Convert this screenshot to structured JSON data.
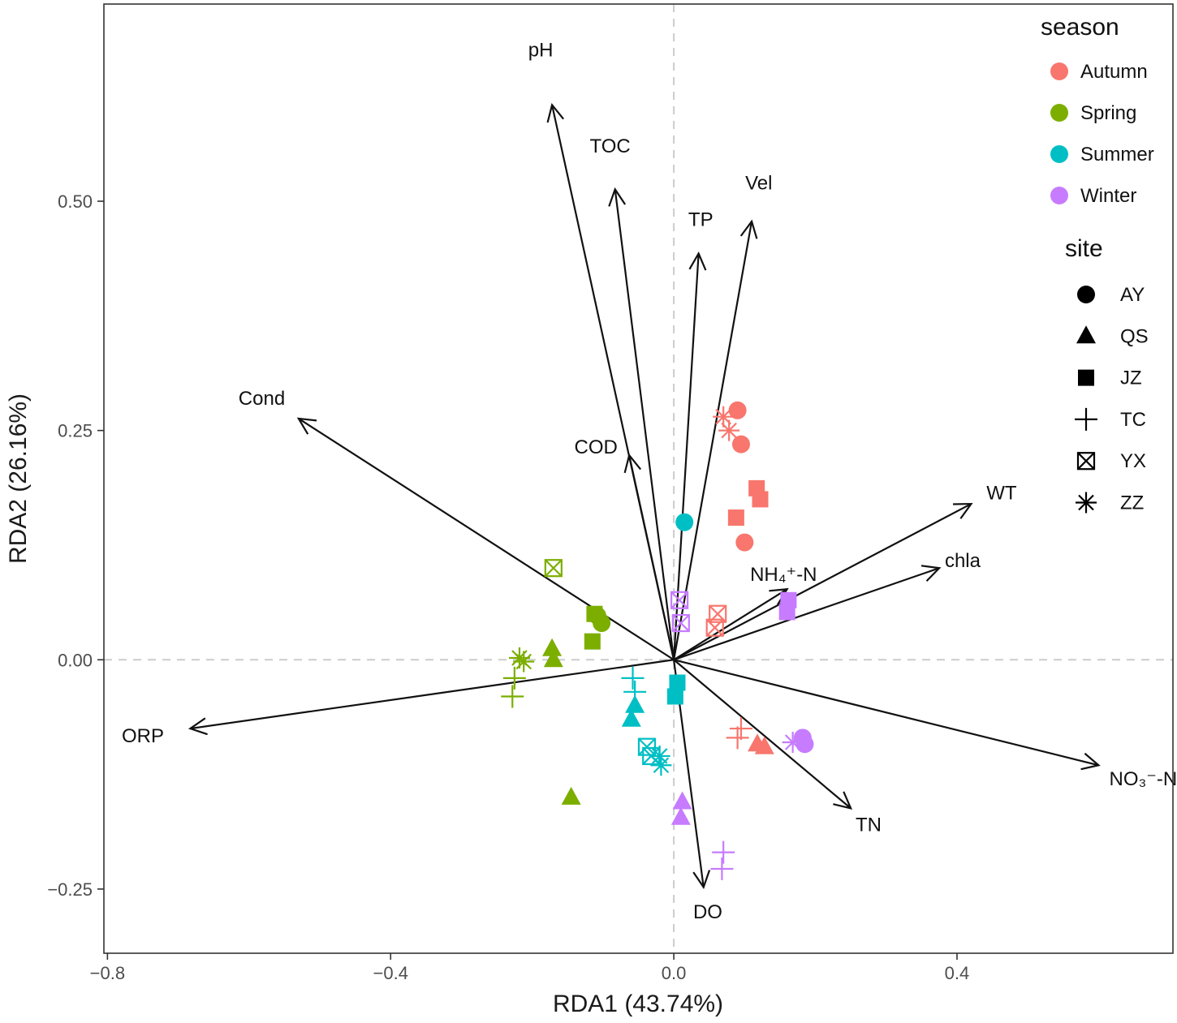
{
  "chart_data": {
    "type": "scatter",
    "subtype": "rda_biplot",
    "xlabel": "RDA1 (43.74%)",
    "ylabel": "RDA2 (26.16%)",
    "xlim": [
      -0.805,
      0.705
    ],
    "ylim": [
      -0.32,
      0.715
    ],
    "xticks": [
      -0.8,
      -0.4,
      0.0,
      0.4
    ],
    "xtick_labels": [
      "−0.8",
      "−0.4",
      "0.0",
      "0.4"
    ],
    "yticks": [
      -0.25,
      0.0,
      0.25,
      0.5
    ],
    "ytick_labels": [
      "−0.25",
      "0.00",
      "0.25",
      "0.50"
    ],
    "zero_lines": true,
    "grid": false,
    "legend_position": "right-inside",
    "season_legend": {
      "title": "season",
      "entries": [
        {
          "name": "Autumn",
          "color": "#F8766D"
        },
        {
          "name": "Spring",
          "color": "#7CAE00"
        },
        {
          "name": "Summer",
          "color": "#00BFC4"
        },
        {
          "name": "Winter",
          "color": "#C77CFF"
        }
      ]
    },
    "site_legend": {
      "title": "site",
      "entries": [
        {
          "name": "AY",
          "shape": "circle"
        },
        {
          "name": "QS",
          "shape": "triangle"
        },
        {
          "name": "JZ",
          "shape": "square"
        },
        {
          "name": "TC",
          "shape": "plus"
        },
        {
          "name": "YX",
          "shape": "boxcross"
        },
        {
          "name": "ZZ",
          "shape": "asterisk"
        }
      ]
    },
    "arrows": [
      {
        "name": "pH",
        "x": -0.172,
        "y": 0.605,
        "label_x": -0.188,
        "label_y": 0.665
      },
      {
        "name": "TOC",
        "x": -0.083,
        "y": 0.513,
        "label_x": -0.09,
        "label_y": 0.56
      },
      {
        "name": "TP",
        "x": 0.035,
        "y": 0.443,
        "label_x": 0.038,
        "label_y": 0.48
      },
      {
        "name": "Vel",
        "x": 0.11,
        "y": 0.478,
        "label_x": 0.12,
        "label_y": 0.52
      },
      {
        "name": "Cond",
        "x": -0.53,
        "y": 0.263,
        "label_x": -0.582,
        "label_y": 0.285
      },
      {
        "name": "COD",
        "x": -0.063,
        "y": 0.223,
        "label_x": -0.11,
        "label_y": 0.232
      },
      {
        "name": "WT",
        "x": 0.42,
        "y": 0.17,
        "label_x": 0.463,
        "label_y": 0.182
      },
      {
        "name": "chla",
        "x": 0.375,
        "y": 0.1,
        "label_x": 0.408,
        "label_y": 0.108
      },
      {
        "name": "NH₄⁺-N",
        "x": 0.16,
        "y": 0.077,
        "label_x": 0.155,
        "label_y": 0.093
      },
      {
        "name": "ORP",
        "x": -0.683,
        "y": -0.075,
        "label_x": -0.75,
        "label_y": -0.083
      },
      {
        "name": "NO₃⁻-N",
        "x": 0.6,
        "y": -0.115,
        "label_x": 0.663,
        "label_y": -0.13
      },
      {
        "name": "TN",
        "x": 0.25,
        "y": -0.162,
        "label_x": 0.275,
        "label_y": -0.18
      },
      {
        "name": "DO",
        "x": 0.042,
        "y": -0.248,
        "label_x": 0.048,
        "label_y": -0.275
      }
    ],
    "points": [
      {
        "season": "Autumn",
        "site": "AY",
        "x": 0.09,
        "y": 0.272
      },
      {
        "season": "Autumn",
        "site": "AY",
        "x": 0.095,
        "y": 0.235
      },
      {
        "season": "Autumn",
        "site": "AY",
        "x": 0.1,
        "y": 0.128
      },
      {
        "season": "Autumn",
        "site": "JZ",
        "x": 0.117,
        "y": 0.187
      },
      {
        "season": "Autumn",
        "site": "JZ",
        "x": 0.122,
        "y": 0.175
      },
      {
        "season": "Autumn",
        "site": "JZ",
        "x": 0.088,
        "y": 0.155
      },
      {
        "season": "Autumn",
        "site": "ZZ",
        "x": 0.07,
        "y": 0.265
      },
      {
        "season": "Autumn",
        "site": "ZZ",
        "x": 0.078,
        "y": 0.25
      },
      {
        "season": "Autumn",
        "site": "YX",
        "x": 0.062,
        "y": 0.05
      },
      {
        "season": "Autumn",
        "site": "YX",
        "x": 0.058,
        "y": 0.035
      },
      {
        "season": "Autumn",
        "site": "TC",
        "x": 0.095,
        "y": -0.075
      },
      {
        "season": "Autumn",
        "site": "TC",
        "x": 0.09,
        "y": -0.085
      },
      {
        "season": "Autumn",
        "site": "QS",
        "x": 0.118,
        "y": -0.092
      },
      {
        "season": "Autumn",
        "site": "QS",
        "x": 0.128,
        "y": -0.095
      },
      {
        "season": "Spring",
        "site": "YX",
        "x": -0.17,
        "y": 0.1
      },
      {
        "season": "Spring",
        "site": "AY",
        "x": -0.108,
        "y": 0.048
      },
      {
        "season": "Spring",
        "site": "AY",
        "x": -0.102,
        "y": 0.04
      },
      {
        "season": "Spring",
        "site": "JZ",
        "x": -0.112,
        "y": 0.05
      },
      {
        "season": "Spring",
        "site": "JZ",
        "x": -0.115,
        "y": 0.02
      },
      {
        "season": "Spring",
        "site": "QS",
        "x": -0.172,
        "y": 0.012
      },
      {
        "season": "Spring",
        "site": "QS",
        "x": -0.17,
        "y": 0.0
      },
      {
        "season": "Spring",
        "site": "ZZ",
        "x": -0.212,
        "y": -0.002
      },
      {
        "season": "Spring",
        "site": "ZZ",
        "x": -0.218,
        "y": 0.002
      },
      {
        "season": "Spring",
        "site": "TC",
        "x": -0.225,
        "y": -0.02
      },
      {
        "season": "Spring",
        "site": "TC",
        "x": -0.228,
        "y": -0.04
      },
      {
        "season": "Spring",
        "site": "QS",
        "x": -0.145,
        "y": -0.15
      },
      {
        "season": "Summer",
        "site": "AY",
        "x": 0.015,
        "y": 0.15
      },
      {
        "season": "Summer",
        "site": "JZ",
        "x": 0.005,
        "y": -0.025
      },
      {
        "season": "Summer",
        "site": "JZ",
        "x": 0.002,
        "y": -0.04
      },
      {
        "season": "Summer",
        "site": "TC",
        "x": -0.058,
        "y": -0.02
      },
      {
        "season": "Summer",
        "site": "TC",
        "x": -0.055,
        "y": -0.035
      },
      {
        "season": "Summer",
        "site": "QS",
        "x": -0.055,
        "y": -0.05
      },
      {
        "season": "Summer",
        "site": "QS",
        "x": -0.06,
        "y": -0.065
      },
      {
        "season": "Summer",
        "site": "YX",
        "x": -0.038,
        "y": -0.095
      },
      {
        "season": "Summer",
        "site": "YX",
        "x": -0.032,
        "y": -0.105
      },
      {
        "season": "Summer",
        "site": "ZZ",
        "x": -0.02,
        "y": -0.105
      },
      {
        "season": "Summer",
        "site": "ZZ",
        "x": -0.018,
        "y": -0.115
      },
      {
        "season": "Winter",
        "site": "YX",
        "x": 0.008,
        "y": 0.065
      },
      {
        "season": "Winter",
        "site": "YX",
        "x": 0.01,
        "y": 0.04
      },
      {
        "season": "Winter",
        "site": "JZ",
        "x": 0.162,
        "y": 0.065
      },
      {
        "season": "Winter",
        "site": "JZ",
        "x": 0.16,
        "y": 0.052
      },
      {
        "season": "Winter",
        "site": "AY",
        "x": 0.182,
        "y": -0.085
      },
      {
        "season": "Winter",
        "site": "AY",
        "x": 0.185,
        "y": -0.092
      },
      {
        "season": "Winter",
        "site": "ZZ",
        "x": 0.168,
        "y": -0.09
      },
      {
        "season": "Winter",
        "site": "QS",
        "x": 0.012,
        "y": -0.155
      },
      {
        "season": "Winter",
        "site": "QS",
        "x": 0.01,
        "y": -0.172
      },
      {
        "season": "Winter",
        "site": "TC",
        "x": 0.07,
        "y": -0.21
      },
      {
        "season": "Winter",
        "site": "TC",
        "x": 0.068,
        "y": -0.228
      }
    ]
  }
}
